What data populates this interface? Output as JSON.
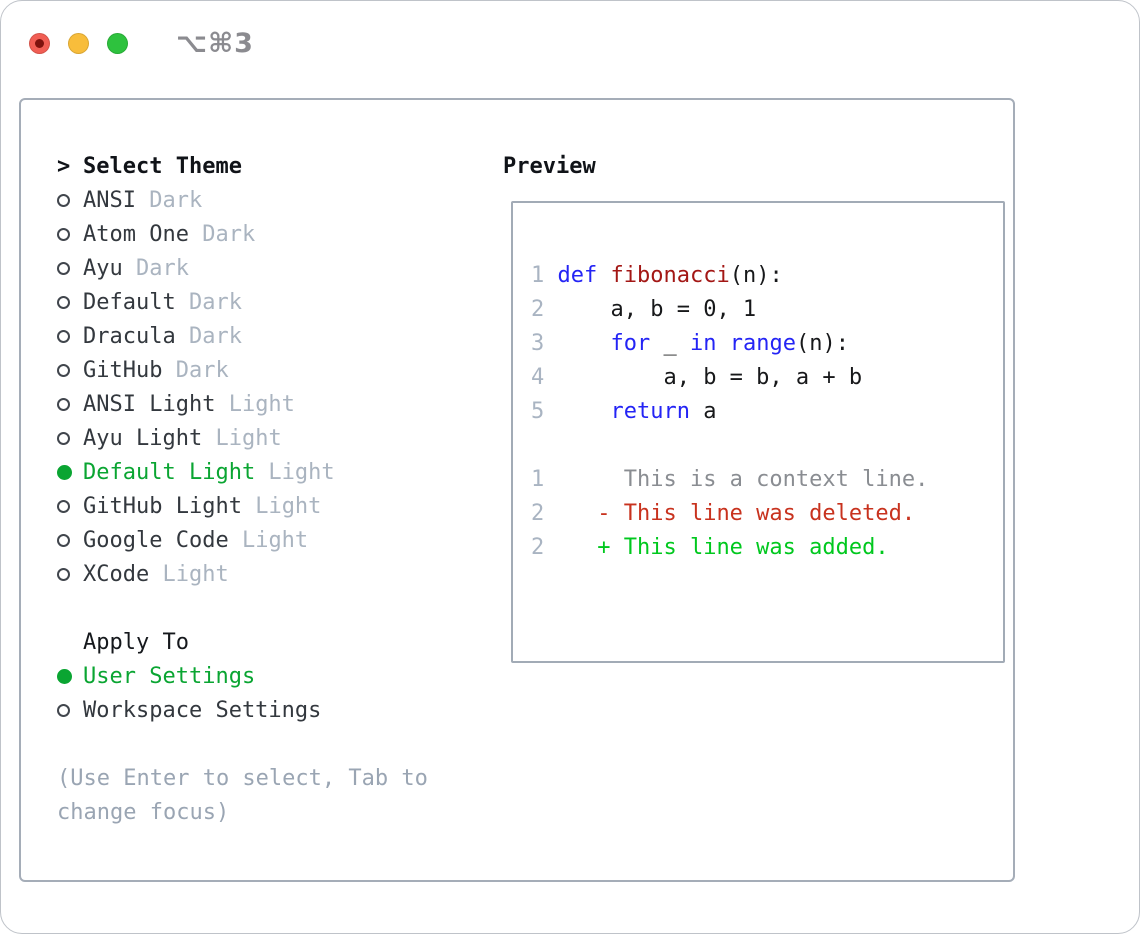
{
  "window": {
    "shortcut_label": "⌥⌘3",
    "traffic_lights": [
      "close",
      "minimize",
      "zoom"
    ]
  },
  "colors": {
    "selection_green": "#0aa532",
    "added_green": "#00c81e",
    "deleted_red": "#c8321e",
    "keyword_blue": "#2424f5",
    "function_red": "#a31715",
    "context_gray": "#8a8d92"
  },
  "theme_picker": {
    "prompt": ">",
    "title": "Select Theme",
    "items": [
      {
        "name": "ANSI",
        "tag": "Dark",
        "selected": false
      },
      {
        "name": "Atom One",
        "tag": "Dark",
        "selected": false
      },
      {
        "name": "Ayu",
        "tag": "Dark",
        "selected": false
      },
      {
        "name": "Default",
        "tag": "Dark",
        "selected": false
      },
      {
        "name": "Dracula",
        "tag": "Dark",
        "selected": false
      },
      {
        "name": "GitHub",
        "tag": "Dark",
        "selected": false
      },
      {
        "name": "ANSI Light",
        "tag": "Light",
        "selected": false
      },
      {
        "name": "Ayu Light",
        "tag": "Light",
        "selected": false
      },
      {
        "name": "Default Light",
        "tag": "Light",
        "selected": true
      },
      {
        "name": "GitHub Light",
        "tag": "Light",
        "selected": false
      },
      {
        "name": "Google Code",
        "tag": "Light",
        "selected": false
      },
      {
        "name": "XCode",
        "tag": "Light",
        "selected": false
      }
    ],
    "apply_to": {
      "title": "Apply To",
      "options": [
        {
          "name": "User Settings",
          "selected": true
        },
        {
          "name": "Workspace Settings",
          "selected": false
        }
      ]
    },
    "help_lines": [
      "(Use Enter to select, Tab to",
      "change focus)"
    ]
  },
  "preview": {
    "title": "Preview",
    "code_lines": [
      {
        "num": "1",
        "tokens": [
          {
            "t": "def",
            "c": "kw"
          },
          {
            "t": " ",
            "c": "p"
          },
          {
            "t": "fibonacci",
            "c": "fn"
          },
          {
            "t": "(n):",
            "c": "p"
          }
        ]
      },
      {
        "num": "2",
        "tokens": [
          {
            "t": "    a, b = 0, 1",
            "c": "p"
          }
        ]
      },
      {
        "num": "3",
        "tokens": [
          {
            "t": "    ",
            "c": "p"
          },
          {
            "t": "for",
            "c": "kw"
          },
          {
            "t": " _ ",
            "c": "p"
          },
          {
            "t": "in",
            "c": "kw"
          },
          {
            "t": " ",
            "c": "p"
          },
          {
            "t": "range",
            "c": "kw"
          },
          {
            "t": "(n):",
            "c": "p"
          }
        ]
      },
      {
        "num": "4",
        "tokens": [
          {
            "t": "        a, b = b, a + b",
            "c": "p"
          }
        ]
      },
      {
        "num": "5",
        "tokens": [
          {
            "t": "    ",
            "c": "p"
          },
          {
            "t": "return",
            "c": "kw"
          },
          {
            "t": " a",
            "c": "p"
          }
        ]
      },
      {
        "num": "",
        "tokens": []
      },
      {
        "num": "1",
        "tokens": [
          {
            "t": "     This is a context line.",
            "c": "ctx"
          }
        ]
      },
      {
        "num": "2",
        "tokens": [
          {
            "t": "   - This line was deleted.",
            "c": "del"
          }
        ]
      },
      {
        "num": "2",
        "tokens": [
          {
            "t": "   + This line was added.",
            "c": "add"
          }
        ]
      }
    ]
  }
}
